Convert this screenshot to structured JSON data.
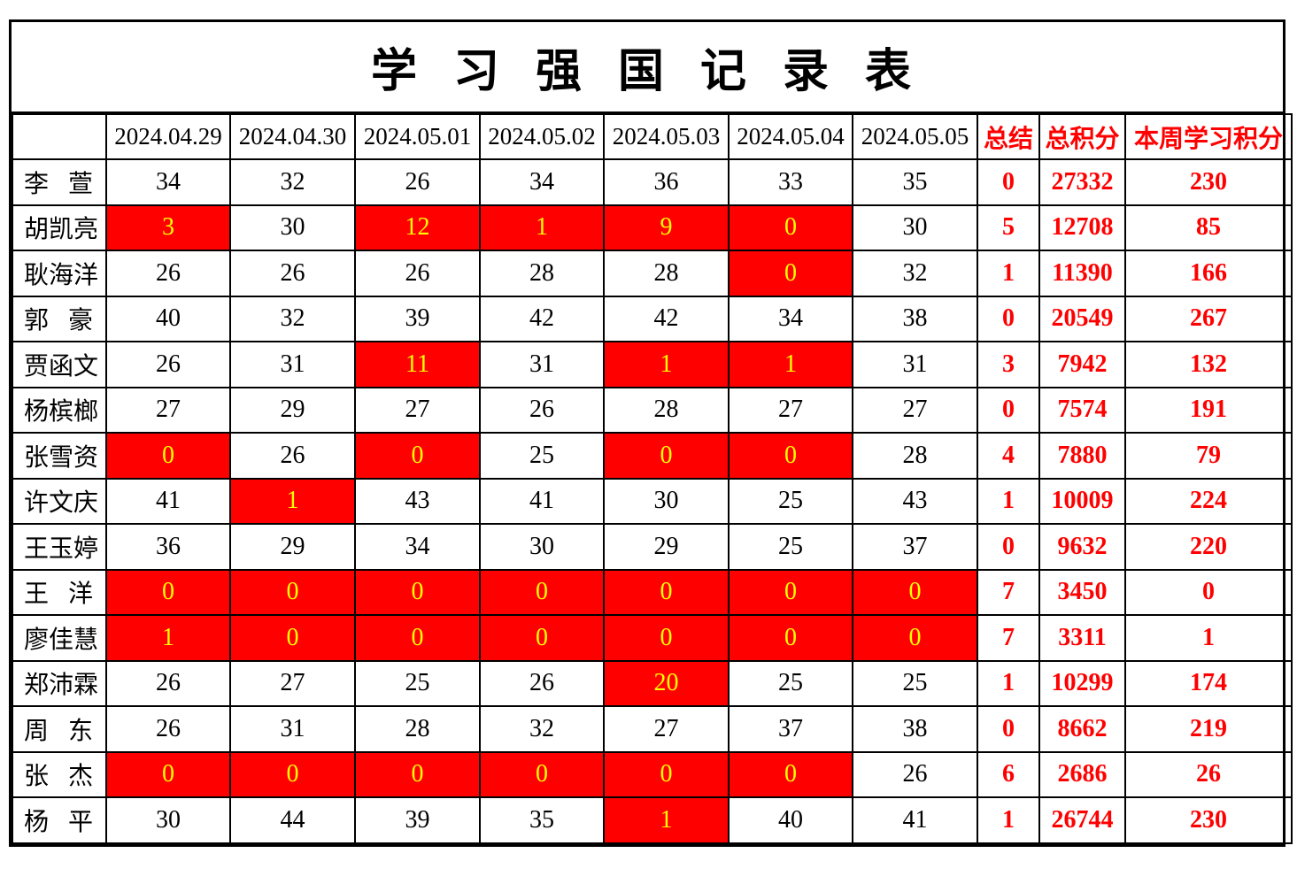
{
  "title": "学 习 强 国 记 录 表",
  "colors": {
    "highlight_bg": "#FF0000",
    "highlight_text": "#FFFF00",
    "accent_text": "#FF0000",
    "border": "#000000",
    "background": "#FFFFFF"
  },
  "table": {
    "corner_label": "",
    "date_headers": [
      "2024.04.29",
      "2024.04.30",
      "2024.05.01",
      "2024.05.02",
      "2024.05.03",
      "2024.05.04",
      "2024.05.05"
    ],
    "summary_headers": [
      "总结",
      "总积分",
      "本周学习积分"
    ],
    "rows": [
      {
        "name": "李 萱",
        "days": [
          "34",
          "32",
          "26",
          "34",
          "36",
          "33",
          "35"
        ],
        "hl": [
          0,
          0,
          0,
          0,
          0,
          0,
          0
        ],
        "summary": "0",
        "total": "27332",
        "week": "230"
      },
      {
        "name": "胡凯亮",
        "days": [
          "3",
          "30",
          "12",
          "1",
          "9",
          "0",
          "30"
        ],
        "hl": [
          1,
          0,
          1,
          1,
          1,
          1,
          0
        ],
        "summary": "5",
        "total": "12708",
        "week": "85"
      },
      {
        "name": "耿海洋",
        "days": [
          "26",
          "26",
          "26",
          "28",
          "28",
          "0",
          "32"
        ],
        "hl": [
          0,
          0,
          0,
          0,
          0,
          1,
          0
        ],
        "summary": "1",
        "total": "11390",
        "week": "166"
      },
      {
        "name": "郭 豪",
        "days": [
          "40",
          "32",
          "39",
          "42",
          "42",
          "34",
          "38"
        ],
        "hl": [
          0,
          0,
          0,
          0,
          0,
          0,
          0
        ],
        "summary": "0",
        "total": "20549",
        "week": "267"
      },
      {
        "name": "贾函文",
        "days": [
          "26",
          "31",
          "11",
          "31",
          "1",
          "1",
          "31"
        ],
        "hl": [
          0,
          0,
          1,
          0,
          1,
          1,
          0
        ],
        "summary": "3",
        "total": "7942",
        "week": "132"
      },
      {
        "name": "杨槟榔",
        "days": [
          "27",
          "29",
          "27",
          "26",
          "28",
          "27",
          "27"
        ],
        "hl": [
          0,
          0,
          0,
          0,
          0,
          0,
          0
        ],
        "summary": "0",
        "total": "7574",
        "week": "191"
      },
      {
        "name": "张雪资",
        "days": [
          "0",
          "26",
          "0",
          "25",
          "0",
          "0",
          "28"
        ],
        "hl": [
          1,
          0,
          1,
          0,
          1,
          1,
          0
        ],
        "summary": "4",
        "total": "7880",
        "week": "79"
      },
      {
        "name": "许文庆",
        "days": [
          "41",
          "1",
          "43",
          "41",
          "30",
          "25",
          "43"
        ],
        "hl": [
          0,
          1,
          0,
          0,
          0,
          0,
          0
        ],
        "summary": "1",
        "total": "10009",
        "week": "224"
      },
      {
        "name": "王玉婷",
        "days": [
          "36",
          "29",
          "34",
          "30",
          "29",
          "25",
          "37"
        ],
        "hl": [
          0,
          0,
          0,
          0,
          0,
          0,
          0
        ],
        "summary": "0",
        "total": "9632",
        "week": "220"
      },
      {
        "name": "王 洋",
        "days": [
          "0",
          "0",
          "0",
          "0",
          "0",
          "0",
          "0"
        ],
        "hl": [
          1,
          1,
          1,
          1,
          1,
          1,
          1
        ],
        "summary": "7",
        "total": "3450",
        "week": "0"
      },
      {
        "name": "廖佳慧",
        "days": [
          "1",
          "0",
          "0",
          "0",
          "0",
          "0",
          "0"
        ],
        "hl": [
          1,
          1,
          1,
          1,
          1,
          1,
          1
        ],
        "summary": "7",
        "total": "3311",
        "week": "1"
      },
      {
        "name": "郑沛霖",
        "days": [
          "26",
          "27",
          "25",
          "26",
          "20",
          "25",
          "25"
        ],
        "hl": [
          0,
          0,
          0,
          0,
          1,
          0,
          0
        ],
        "summary": "1",
        "total": "10299",
        "week": "174"
      },
      {
        "name": "周 东",
        "days": [
          "26",
          "31",
          "28",
          "32",
          "27",
          "37",
          "38"
        ],
        "hl": [
          0,
          0,
          0,
          0,
          0,
          0,
          0
        ],
        "summary": "0",
        "total": "8662",
        "week": "219"
      },
      {
        "name": "张 杰",
        "days": [
          "0",
          "0",
          "0",
          "0",
          "0",
          "0",
          "26"
        ],
        "hl": [
          1,
          1,
          1,
          1,
          1,
          1,
          0
        ],
        "summary": "6",
        "total": "2686",
        "week": "26"
      },
      {
        "name": "杨 平",
        "days": [
          "30",
          "44",
          "39",
          "35",
          "1",
          "40",
          "41"
        ],
        "hl": [
          0,
          0,
          0,
          0,
          1,
          0,
          0
        ],
        "summary": "1",
        "total": "26744",
        "week": "230"
      }
    ]
  }
}
